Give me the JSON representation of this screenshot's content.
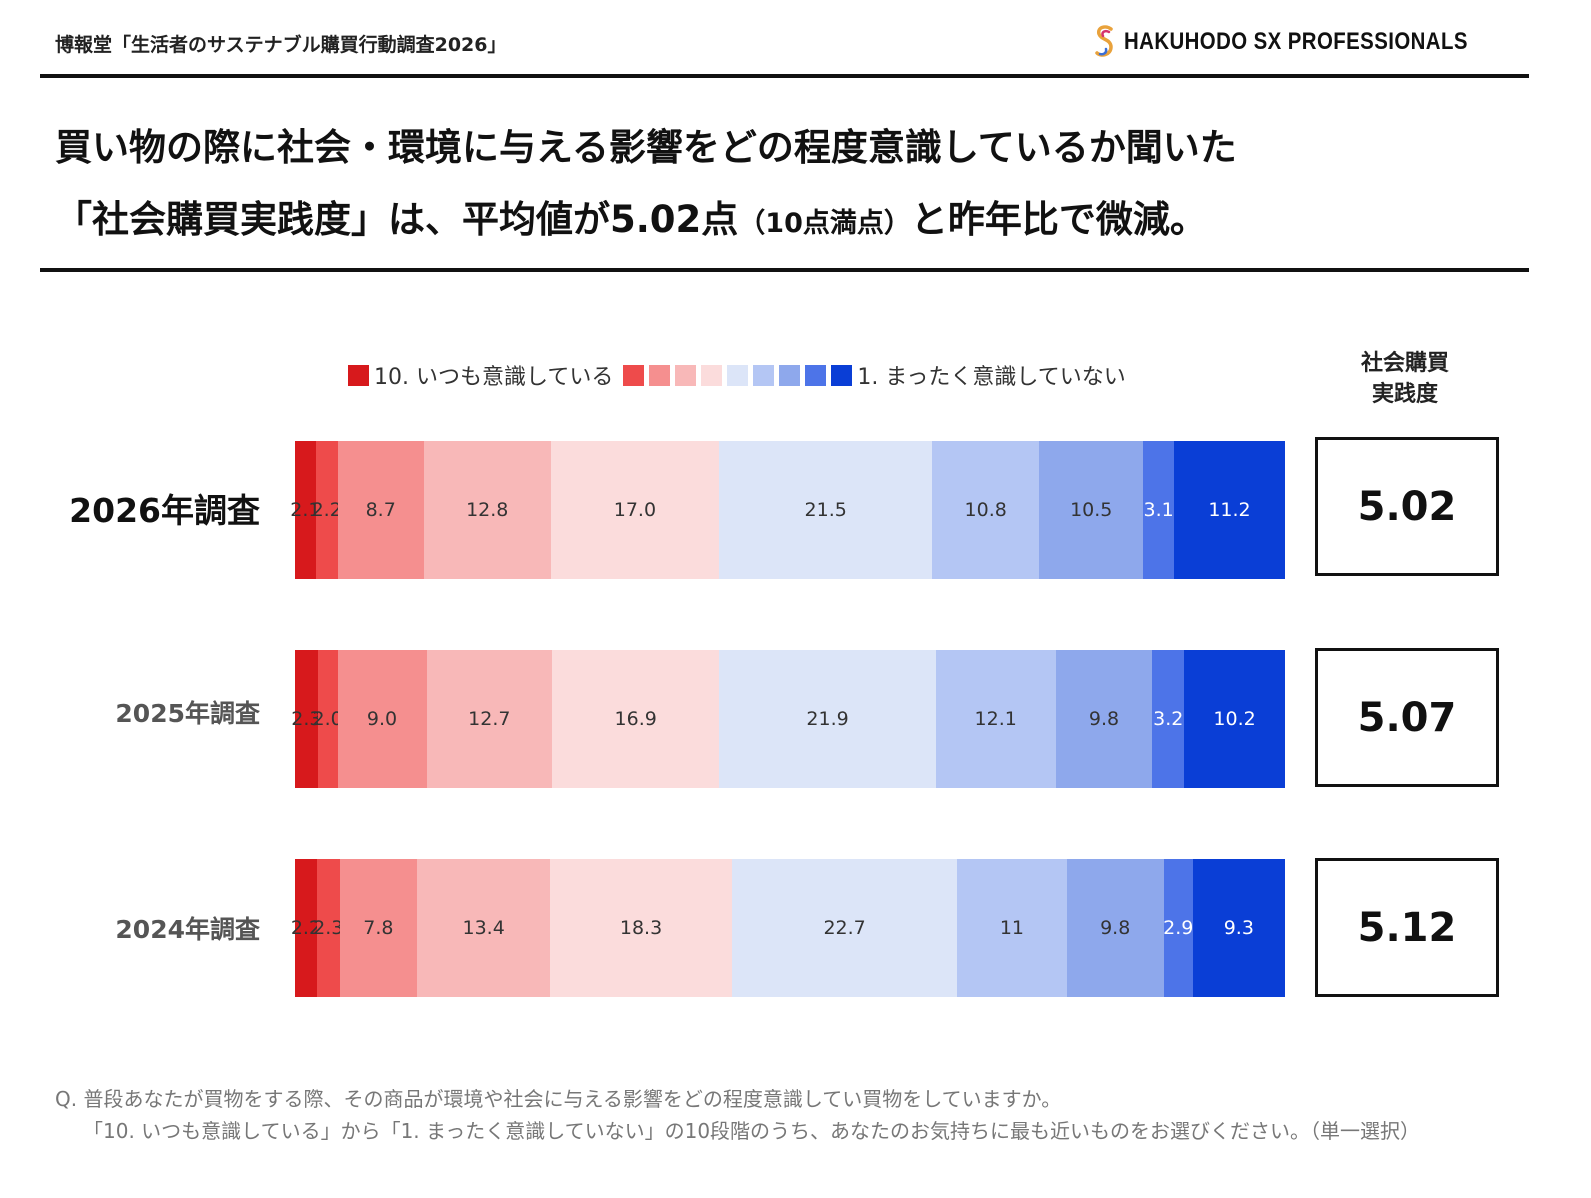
{
  "header": {
    "source": "博報堂「生活者のサステナブル購買行動調査2026」",
    "logo_text": "HAKUHODO SX PROFESSIONALS",
    "logo_icon": "hakuhodo-s-logo"
  },
  "headline": {
    "line1": "買い物の際に社会・環境に与える影響をどの程度意識しているか聞いた",
    "line2a": "「社会購買実践度」は、平均値が5.02点",
    "line2b": "（10点満点）",
    "line2c": "と昨年比で微減。"
  },
  "legend": {
    "first_label": "10. いつも意識している",
    "last_label": "1. まったく意識していない"
  },
  "score_header": {
    "line1": "社会購買",
    "line2": "実践度"
  },
  "colors": {
    "scale": [
      "#d7191c",
      "#ee4b4b",
      "#f58f8f",
      "#f8b8b8",
      "#fbdcdc",
      "#dce5f8",
      "#b4c6f4",
      "#8ea8ec",
      "#4d74e8",
      "#0a3ed6"
    ]
  },
  "chart_data": {
    "type": "bar",
    "orientation": "horizontal",
    "stacked": true,
    "normalized": true,
    "categories": [
      "2026年調査",
      "2025年調査",
      "2024年調査"
    ],
    "series": [
      {
        "name": "10. いつも意識している",
        "values": [
          2.1,
          2.3,
          2.2
        ]
      },
      {
        "name": "9",
        "values": [
          2.2,
          2.0,
          2.3
        ]
      },
      {
        "name": "8",
        "values": [
          8.7,
          9.0,
          7.8
        ]
      },
      {
        "name": "7",
        "values": [
          12.8,
          12.7,
          13.4
        ]
      },
      {
        "name": "6",
        "values": [
          17.0,
          16.9,
          18.3
        ]
      },
      {
        "name": "5",
        "values": [
          21.5,
          21.9,
          22.7
        ]
      },
      {
        "name": "4",
        "values": [
          10.8,
          12.1,
          11
        ]
      },
      {
        "name": "3",
        "values": [
          10.5,
          9.8,
          9.8
        ]
      },
      {
        "name": "2",
        "values": [
          3.1,
          3.2,
          2.9
        ]
      },
      {
        "name": "1. まったく意識していない",
        "values": [
          11.2,
          10.2,
          9.3
        ]
      }
    ],
    "value_labels": [
      [
        "2.1",
        "2.2",
        "8.7",
        "12.8",
        "17.0",
        "21.5",
        "10.8",
        "10.5",
        "3.1",
        "11.2"
      ],
      [
        "2.3",
        "2.0",
        "9.0",
        "12.7",
        "16.9",
        "21.9",
        "12.1",
        "9.8",
        "3.2",
        "10.2"
      ],
      [
        "2.2",
        "2.3",
        "7.8",
        "13.4",
        "18.3",
        "22.7",
        "11",
        "9.8",
        "2.9",
        "9.3"
      ]
    ],
    "scores": [
      "5.02",
      "5.07",
      "5.12"
    ],
    "legend_position": "top"
  },
  "footnote": {
    "line1": "Q. 普段あなたが買物をする際、その商品が環境や社会に与える影響をどの程度意識してい買物をしていますか。",
    "line2": "「10. いつも意識している」から「1. まったく意識していない」の10段階のうち、あなたのお気持ちに最も近いものをお選びください。（単一選択）"
  }
}
